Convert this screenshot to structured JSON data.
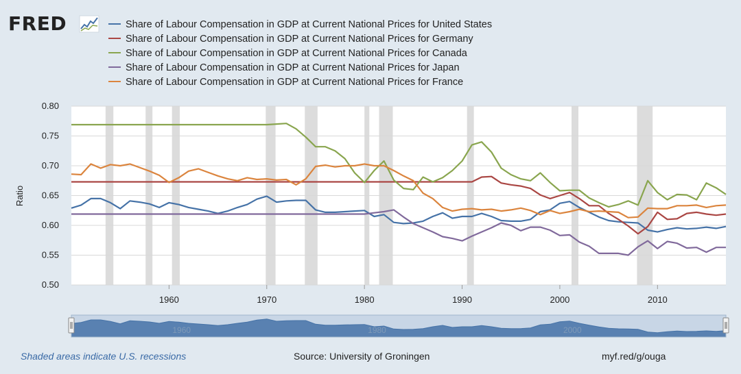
{
  "logo": {
    "text": "FRED",
    "icon": "fred-chart-icon"
  },
  "footer": {
    "note": "Shaded areas indicate U.S. recessions",
    "source": "Source: University of Groningen",
    "link": "myf.red/g/ouga"
  },
  "colors": {
    "background": "#e1e9f0",
    "plot_bg": "#ffffff",
    "recession": "#dcdcdc",
    "navigator": "#4572a7"
  },
  "chart_data": {
    "type": "line",
    "ylabel": "Ratio",
    "xlim": [
      1950,
      2017
    ],
    "ylim": [
      0.5,
      0.8
    ],
    "yticks": [
      0.5,
      0.55,
      0.6,
      0.65,
      0.7,
      0.75,
      0.8
    ],
    "ytick_labels": [
      "0.50",
      "0.55",
      "0.60",
      "0.65",
      "0.70",
      "0.75",
      "0.80"
    ],
    "xticks": [
      1960,
      1970,
      1980,
      1990,
      2000,
      2010
    ],
    "grid": true,
    "legend_position": "top",
    "recessions": [
      [
        1953.5,
        1954.3
      ],
      [
        1957.6,
        1958.3
      ],
      [
        1960.3,
        1961.1
      ],
      [
        1969.9,
        1970.9
      ],
      [
        1973.9,
        1975.2
      ],
      [
        1980.0,
        1980.5
      ],
      [
        1981.5,
        1982.9
      ],
      [
        1990.5,
        1991.2
      ],
      [
        2001.2,
        2001.9
      ],
      [
        2007.9,
        2009.5
      ]
    ],
    "navigator_labels": [
      "1960",
      "1980",
      "2000"
    ],
    "series": [
      {
        "name": "Share of Labour Compensation in GDP at Current National Prices for United States",
        "color": "#4572a7",
        "x": [
          1950,
          1951,
          1952,
          1953,
          1954,
          1955,
          1956,
          1957,
          1958,
          1959,
          1960,
          1961,
          1962,
          1963,
          1964,
          1965,
          1966,
          1967,
          1968,
          1969,
          1970,
          1971,
          1972,
          1973,
          1974,
          1975,
          1976,
          1977,
          1978,
          1979,
          1980,
          1981,
          1982,
          1983,
          1984,
          1985,
          1986,
          1987,
          1988,
          1989,
          1990,
          1991,
          1992,
          1993,
          1994,
          1995,
          1996,
          1997,
          1998,
          1999,
          2000,
          2001,
          2002,
          2003,
          2004,
          2005,
          2006,
          2007,
          2008,
          2009,
          2010,
          2011,
          2012,
          2013,
          2014,
          2015,
          2016,
          2017
        ],
        "values": [
          0.629,
          0.634,
          0.645,
          0.645,
          0.638,
          0.628,
          0.641,
          0.639,
          0.636,
          0.63,
          0.638,
          0.635,
          0.63,
          0.627,
          0.624,
          0.62,
          0.624,
          0.63,
          0.635,
          0.644,
          0.649,
          0.639,
          0.641,
          0.642,
          0.642,
          0.626,
          0.622,
          0.622,
          0.623,
          0.624,
          0.625,
          0.615,
          0.618,
          0.605,
          0.603,
          0.604,
          0.607,
          0.615,
          0.621,
          0.612,
          0.615,
          0.615,
          0.62,
          0.615,
          0.608,
          0.607,
          0.607,
          0.61,
          0.623,
          0.626,
          0.637,
          0.64,
          0.63,
          0.622,
          0.614,
          0.608,
          0.606,
          0.605,
          0.604,
          0.592,
          0.589,
          0.593,
          0.596,
          0.594,
          0.595,
          0.597,
          0.595,
          0.598
        ]
      },
      {
        "name": "Share of Labour Compensation in GDP at Current National Prices for Germany",
        "color": "#aa4643",
        "x": [
          1950,
          1991,
          1992,
          1993,
          1994,
          1995,
          1996,
          1997,
          1998,
          1999,
          2000,
          2001,
          2002,
          2003,
          2004,
          2005,
          2006,
          2007,
          2008,
          2009,
          2010,
          2011,
          2012,
          2013,
          2014,
          2015,
          2016,
          2017
        ],
        "values": [
          0.673,
          0.673,
          0.681,
          0.682,
          0.671,
          0.668,
          0.666,
          0.662,
          0.651,
          0.645,
          0.65,
          0.655,
          0.645,
          0.633,
          0.633,
          0.62,
          0.61,
          0.599,
          0.586,
          0.598,
          0.622,
          0.61,
          0.611,
          0.62,
          0.622,
          0.619,
          0.617,
          0.619
        ]
      },
      {
        "name": "Share of Labour Compensation in GDP at Current National Prices for Canada",
        "color": "#89a54e",
        "x": [
          1950,
          1970,
          1971,
          1972,
          1973,
          1974,
          1975,
          1976,
          1977,
          1978,
          1979,
          1980,
          1981,
          1982,
          1983,
          1984,
          1985,
          1986,
          1987,
          1988,
          1989,
          1990,
          1991,
          1992,
          1993,
          1994,
          1995,
          1996,
          1997,
          1998,
          1999,
          2000,
          2001,
          2002,
          2003,
          2004,
          2005,
          2006,
          2007,
          2008,
          2009,
          2010,
          2011,
          2012,
          2013,
          2014,
          2015,
          2016,
          2017
        ],
        "values": [
          0.769,
          0.769,
          0.77,
          0.771,
          0.762,
          0.748,
          0.732,
          0.732,
          0.725,
          0.712,
          0.688,
          0.672,
          0.692,
          0.708,
          0.676,
          0.662,
          0.66,
          0.681,
          0.673,
          0.68,
          0.692,
          0.708,
          0.735,
          0.74,
          0.723,
          0.696,
          0.685,
          0.678,
          0.675,
          0.688,
          0.672,
          0.658,
          0.659,
          0.659,
          0.646,
          0.638,
          0.631,
          0.635,
          0.641,
          0.634,
          0.675,
          0.655,
          0.643,
          0.652,
          0.651,
          0.643,
          0.671,
          0.663,
          0.652
        ]
      },
      {
        "name": "Share of Labour Compensation in GDP at Current National Prices for Japan",
        "color": "#80699b",
        "x": [
          1950,
          1980,
          1981,
          1982,
          1983,
          1984,
          1985,
          1986,
          1987,
          1988,
          1989,
          1990,
          1991,
          1992,
          1993,
          1994,
          1995,
          1996,
          1997,
          1998,
          1999,
          2000,
          2001,
          2002,
          2003,
          2004,
          2005,
          2006,
          2007,
          2008,
          2009,
          2010,
          2011,
          2012,
          2013,
          2014,
          2015,
          2016,
          2017
        ],
        "values": [
          0.619,
          0.619,
          0.621,
          0.623,
          0.626,
          0.614,
          0.603,
          0.596,
          0.589,
          0.581,
          0.578,
          0.574,
          0.582,
          0.589,
          0.596,
          0.604,
          0.6,
          0.591,
          0.597,
          0.597,
          0.592,
          0.583,
          0.584,
          0.572,
          0.565,
          0.553,
          0.553,
          0.553,
          0.55,
          0.564,
          0.574,
          0.561,
          0.573,
          0.57,
          0.562,
          0.563,
          0.555,
          0.563,
          0.563
        ]
      },
      {
        "name": "Share of Labour Compensation in GDP at Current National Prices for France",
        "color": "#db843d",
        "x": [
          1950,
          1951,
          1952,
          1953,
          1954,
          1955,
          1956,
          1957,
          1958,
          1959,
          1960,
          1961,
          1962,
          1963,
          1964,
          1965,
          1966,
          1967,
          1968,
          1969,
          1970,
          1971,
          1972,
          1973,
          1974,
          1975,
          1976,
          1977,
          1978,
          1979,
          1980,
          1981,
          1982,
          1983,
          1984,
          1985,
          1986,
          1987,
          1988,
          1989,
          1990,
          1991,
          1992,
          1993,
          1994,
          1995,
          1996,
          1997,
          1998,
          1999,
          2000,
          2001,
          2002,
          2003,
          2004,
          2005,
          2006,
          2007,
          2008,
          2009,
          2010,
          2011,
          2012,
          2013,
          2014,
          2015,
          2016,
          2017
        ],
        "values": [
          0.686,
          0.685,
          0.703,
          0.696,
          0.702,
          0.7,
          0.703,
          0.697,
          0.691,
          0.684,
          0.672,
          0.68,
          0.691,
          0.695,
          0.689,
          0.683,
          0.678,
          0.675,
          0.68,
          0.677,
          0.678,
          0.676,
          0.677,
          0.668,
          0.678,
          0.699,
          0.701,
          0.698,
          0.7,
          0.7,
          0.703,
          0.7,
          0.7,
          0.692,
          0.683,
          0.675,
          0.654,
          0.645,
          0.63,
          0.624,
          0.627,
          0.628,
          0.626,
          0.627,
          0.624,
          0.626,
          0.629,
          0.625,
          0.618,
          0.625,
          0.62,
          0.623,
          0.627,
          0.623,
          0.624,
          0.623,
          0.622,
          0.613,
          0.614,
          0.629,
          0.628,
          0.628,
          0.633,
          0.633,
          0.634,
          0.63,
          0.633,
          0.634
        ]
      }
    ]
  }
}
